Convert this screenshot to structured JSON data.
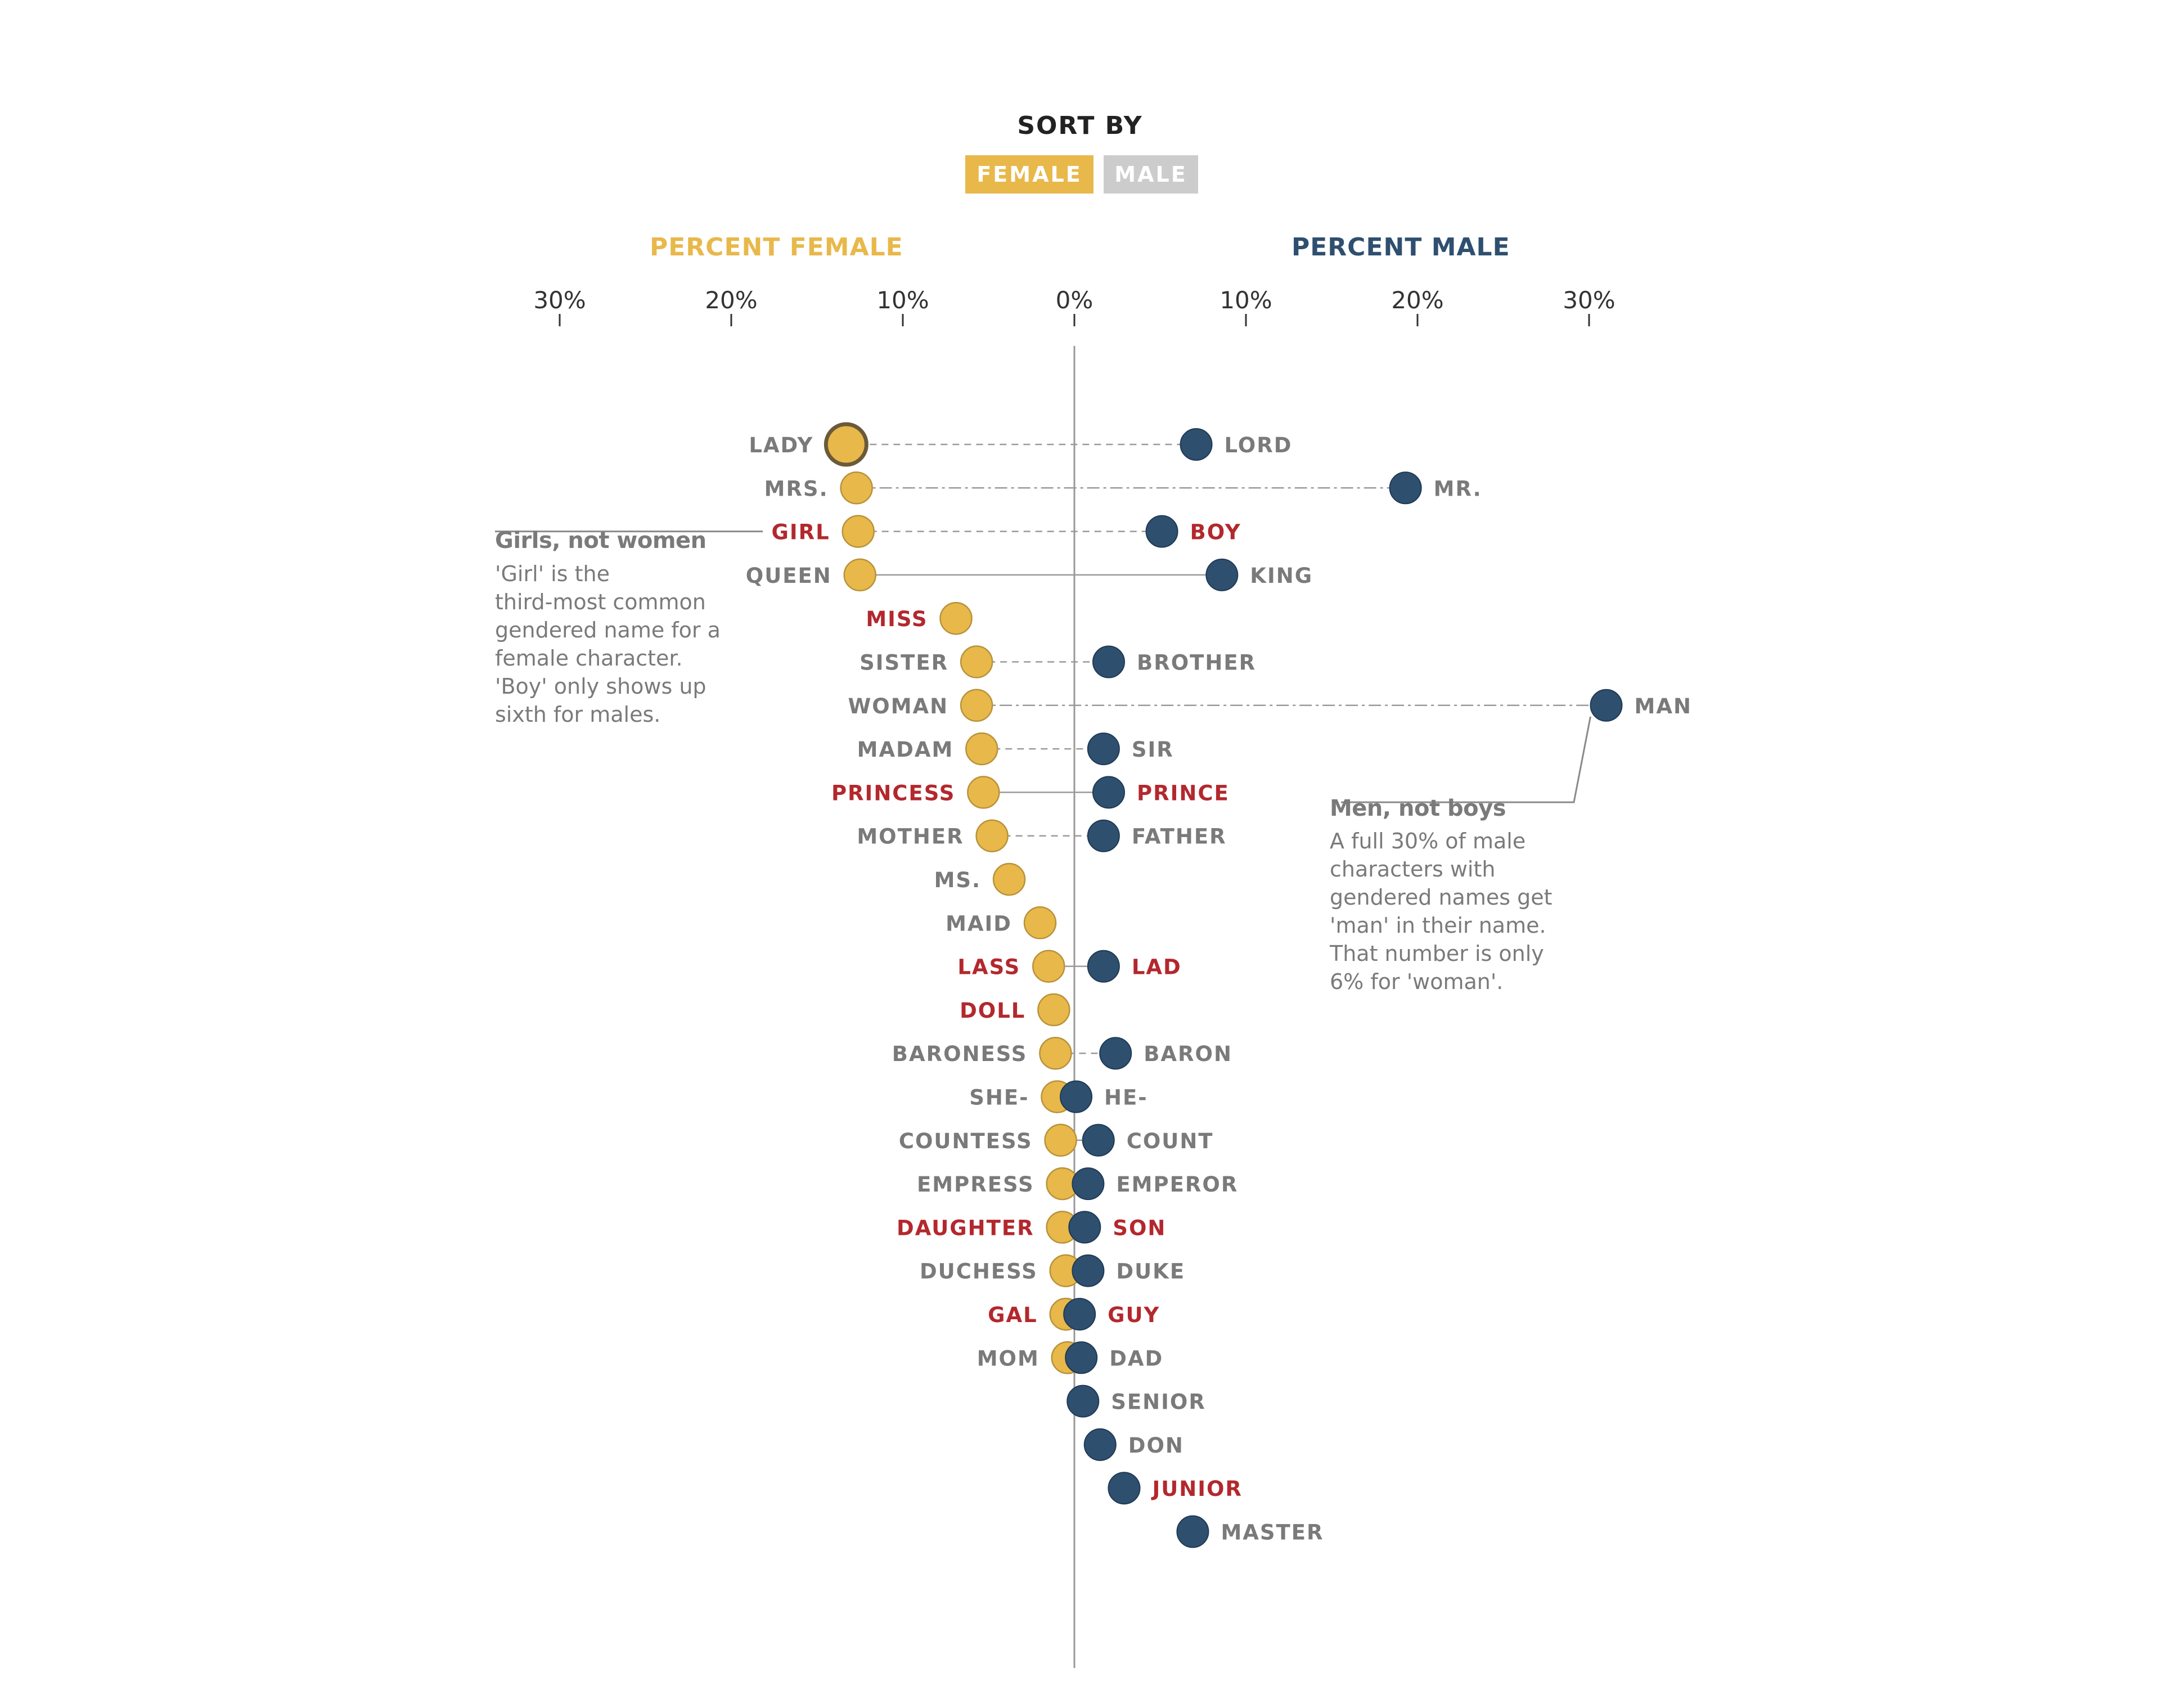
{
  "controls": {
    "sort_by_label": "SORT BY",
    "female_button": "FEMALE",
    "male_button": "MALE",
    "active": "female"
  },
  "colors": {
    "female": "#e8b84a",
    "female_stroke": "#b8923a",
    "male": "#2f4f6f",
    "female_header": "#e8b84a",
    "male_header": "#2f4f6f",
    "inactive_button": "#cccccc",
    "label_gray": "#7a7a7a",
    "label_red": "#b3282d",
    "axis": "#333333",
    "centerline": "#999999"
  },
  "chart_data": {
    "type": "scatter",
    "headers": {
      "female": "PERCENT FEMALE",
      "male": "PERCENT MALE"
    },
    "axis": {
      "ticks": [
        -30,
        -20,
        -10,
        0,
        10,
        20,
        30
      ],
      "tick_labels": [
        "30%",
        "20%",
        "10%",
        "0%",
        "10%",
        "20%",
        "30%"
      ],
      "xlim": [
        -30,
        30
      ]
    },
    "rows": [
      {
        "female_label": "LADY",
        "female": 13.3,
        "male_label": "LORD",
        "male": 7.1,
        "highlight": false,
        "line": "dashed",
        "female_active": true
      },
      {
        "female_label": "MRS.",
        "female": 12.7,
        "male_label": "MR.",
        "male": 19.3,
        "highlight": false,
        "line": "dashdot"
      },
      {
        "female_label": "GIRL",
        "female": 12.6,
        "male_label": "BOY",
        "male": 5.1,
        "highlight": true,
        "line": "dashed"
      },
      {
        "female_label": "QUEEN",
        "female": 12.5,
        "male_label": "KING",
        "male": 8.6,
        "highlight": false,
        "line": "solid"
      },
      {
        "female_label": "MISS",
        "female": 6.9,
        "male_label": "",
        "male": null,
        "highlight": true,
        "line": "none"
      },
      {
        "female_label": "SISTER",
        "female": 5.7,
        "male_label": "BROTHER",
        "male": 2.0,
        "highlight": false,
        "line": "dashed"
      },
      {
        "female_label": "WOMAN",
        "female": 5.7,
        "male_label": "MAN",
        "male": 31.0,
        "highlight": false,
        "line": "dashdot"
      },
      {
        "female_label": "MADAM",
        "female": 5.4,
        "male_label": "SIR",
        "male": 1.7,
        "highlight": false,
        "line": "dashed"
      },
      {
        "female_label": "PRINCESS",
        "female": 5.3,
        "male_label": "PRINCE",
        "male": 2.0,
        "highlight": true,
        "line": "solid"
      },
      {
        "female_label": "MOTHER",
        "female": 4.8,
        "male_label": "FATHER",
        "male": 1.7,
        "highlight": false,
        "line": "dashed"
      },
      {
        "female_label": "MS.",
        "female": 3.8,
        "male_label": "",
        "male": null,
        "highlight": false,
        "line": "none"
      },
      {
        "female_label": "MAID",
        "female": 2.0,
        "male_label": "",
        "male": null,
        "highlight": false,
        "line": "none"
      },
      {
        "female_label": "LASS",
        "female": 1.5,
        "male_label": "LAD",
        "male": 1.7,
        "highlight": true,
        "line": "solid"
      },
      {
        "female_label": "DOLL",
        "female": 1.2,
        "male_label": "",
        "male": null,
        "highlight": true,
        "line": "none"
      },
      {
        "female_label": "BARONESS",
        "female": 1.1,
        "male_label": "BARON",
        "male": 2.4,
        "highlight": false,
        "line": "dashed"
      },
      {
        "female_label": "SHE-",
        "female": 1.0,
        "male_label": "HE-",
        "male": 0.1,
        "highlight": false,
        "line": "none"
      },
      {
        "female_label": "COUNTESS",
        "female": 0.8,
        "male_label": "COUNT",
        "male": 1.4,
        "highlight": false,
        "line": "solid"
      },
      {
        "female_label": "EMPRESS",
        "female": 0.7,
        "male_label": "EMPEROR",
        "male": 0.8,
        "highlight": false,
        "line": "solid"
      },
      {
        "female_label": "DAUGHTER",
        "female": 0.7,
        "male_label": "SON",
        "male": 0.6,
        "highlight": true,
        "line": "solid"
      },
      {
        "female_label": "DUCHESS",
        "female": 0.5,
        "male_label": "DUKE",
        "male": 0.8,
        "highlight": false,
        "line": "solid"
      },
      {
        "female_label": "GAL",
        "female": 0.5,
        "male_label": "GUY",
        "male": 0.3,
        "highlight": true,
        "line": "none"
      },
      {
        "female_label": "MOM",
        "female": 0.4,
        "male_label": "DAD",
        "male": 0.4,
        "highlight": false,
        "line": "none"
      },
      {
        "female_label": "",
        "female": null,
        "male_label": "SENIOR",
        "male": 0.5,
        "highlight": false,
        "line": "none"
      },
      {
        "female_label": "",
        "female": null,
        "male_label": "DON",
        "male": 1.5,
        "highlight": false,
        "line": "none"
      },
      {
        "female_label": "",
        "female": null,
        "male_label": "JUNIOR",
        "male": 2.9,
        "highlight": true,
        "line": "none"
      },
      {
        "female_label": "",
        "female": null,
        "male_label": "MASTER",
        "male": 6.9,
        "highlight": false,
        "line": "none"
      }
    ]
  },
  "annotations": {
    "left": {
      "title": "Girls, not women",
      "body": "'Girl' is the\nthird-most common\ngendered name for a\nfemale character.\n'Boy' only shows up\nsixth for males."
    },
    "right": {
      "title": "Men, not boys",
      "body": "A full 30% of male\ncharacters with\ngendered names get\n'man' in their name.\nThat number is only\n6% for 'woman'."
    }
  }
}
